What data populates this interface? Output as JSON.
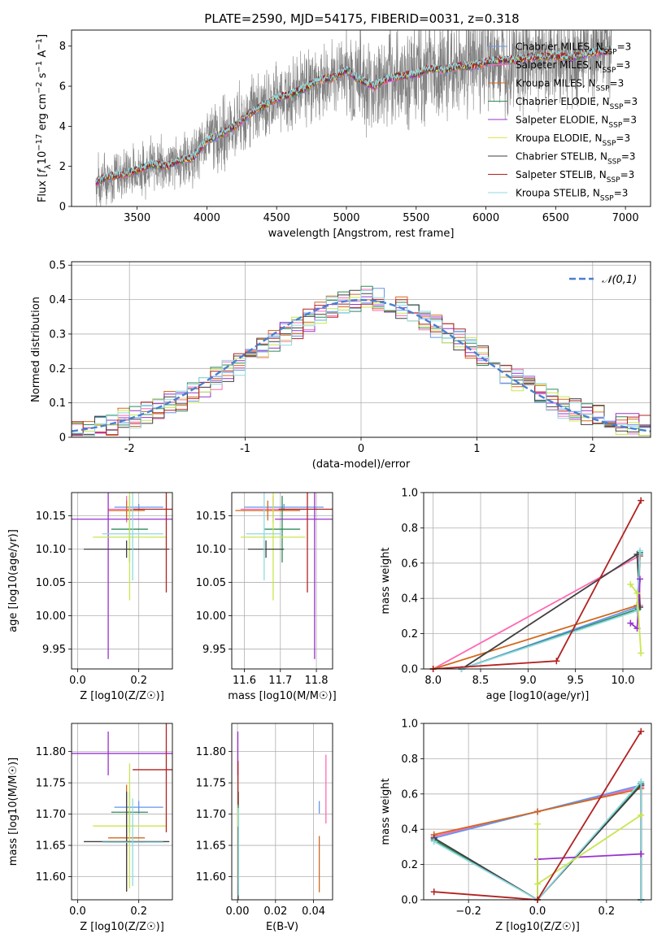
{
  "figure": {
    "title": "PLATE=2590, MJD=54175, FIBERID=0031, z=0.318"
  },
  "chart_data": [
    {
      "id": "spectrum",
      "type": "line",
      "xlabel": "wavelength [Angstrom, rest frame]",
      "ylabel": "Flux [f_λ 10^-17 erg cm^-2 s^-1 A^-1]",
      "xlim": [
        3030,
        7180
      ],
      "ylim": [
        0,
        8.8
      ],
      "xticks": [
        3500,
        4000,
        4500,
        5000,
        5500,
        6000,
        6500,
        7000
      ],
      "yticks": [
        0,
        2,
        4,
        6,
        8
      ],
      "grid": false,
      "legend_position": "top-right",
      "data_color": "#808080",
      "data_range": [
        3205,
        6900
      ],
      "envelope": {
        "x": [
          3205,
          3300,
          3400,
          3500,
          3600,
          3700,
          3800,
          3900,
          4000,
          4100,
          4200,
          4300,
          4400,
          4500,
          4600,
          4700,
          4800,
          4900,
          5000,
          5100,
          5200,
          5300,
          5400,
          5500,
          5600,
          5700,
          5800,
          5900,
          6000,
          6100,
          6200,
          6300,
          6400,
          6500,
          6600,
          6700,
          6800,
          6900
        ],
        "y": [
          1.2,
          1.5,
          1.6,
          1.8,
          2.1,
          2.0,
          2.3,
          2.4,
          3.3,
          3.6,
          4.0,
          4.6,
          5.0,
          5.4,
          5.6,
          5.9,
          6.3,
          6.4,
          6.8,
          6.3,
          6.0,
          6.4,
          6.5,
          6.6,
          6.9,
          6.8,
          7.0,
          7.0,
          7.2,
          7.3,
          7.3,
          7.4,
          7.5,
          7.5,
          7.4,
          7.6,
          7.7,
          7.8
        ]
      },
      "series": [
        {
          "name": "Chabrier MILES, N_SSP=3",
          "color": "#6495ed"
        },
        {
          "name": "Salpeter MILES, N_SSP=3",
          "color": "#ff69b4"
        },
        {
          "name": "Kroupa MILES, N_SSP=3",
          "color": "#d2691e"
        },
        {
          "name": "Chabrier ELODIE, N_SSP=3",
          "color": "#2e8b57"
        },
        {
          "name": "Salpeter ELODIE, N_SSP=3",
          "color": "#9932cc"
        },
        {
          "name": "Kroupa ELODIE, N_SSP=3",
          "color": "#e5e550"
        },
        {
          "name": "Chabrier STELIB, N_SSP=3",
          "color": "#404040"
        },
        {
          "name": "Salpeter STELIB, N_SSP=3",
          "color": "#b22222"
        },
        {
          "name": "Kroupa STELIB, N_SSP=3",
          "color": "#8fd9e0"
        }
      ]
    },
    {
      "id": "residuals",
      "type": "line",
      "xlabel": "(data-model)/error",
      "ylabel": "Normed distribution",
      "xlim": [
        -2.5,
        2.5
      ],
      "ylim": [
        0,
        0.51
      ],
      "xticks": [
        -2,
        -1,
        0,
        1,
        2
      ],
      "yticks": [
        0.0,
        0.1,
        0.2,
        0.3,
        0.4,
        0.5
      ],
      "grid": true,
      "legend_position": "top-right",
      "gaussian": {
        "name": "𝒩(0,1)",
        "color": "#4a7fd0"
      },
      "bin_centers": [
        -2.45,
        -2.35,
        -2.25,
        -2.15,
        -2.05,
        -1.95,
        -1.85,
        -1.75,
        -1.65,
        -1.55,
        -1.45,
        -1.35,
        -1.25,
        -1.15,
        -1.05,
        -0.95,
        -0.85,
        -0.75,
        -0.65,
        -0.55,
        -0.45,
        -0.35,
        -0.25,
        -0.15,
        -0.05,
        0.05,
        0.15,
        0.25,
        0.35,
        0.45,
        0.55,
        0.65,
        0.75,
        0.85,
        0.95,
        1.05,
        1.15,
        1.25,
        1.35,
        1.45,
        1.55,
        1.65,
        1.75,
        1.85,
        1.95,
        2.05,
        2.15,
        2.25,
        2.35,
        2.45
      ],
      "hist_colors": [
        "#6495ed",
        "#ff69b4",
        "#d2691e",
        "#2e8b57",
        "#9932cc",
        "#c8e650",
        "#404040",
        "#b22222",
        "#8fd9e0"
      ],
      "hist_base": [
        0.02,
        0.02,
        0.03,
        0.04,
        0.05,
        0.06,
        0.07,
        0.08,
        0.1,
        0.11,
        0.13,
        0.15,
        0.17,
        0.19,
        0.21,
        0.23,
        0.26,
        0.28,
        0.3,
        0.32,
        0.34,
        0.36,
        0.38,
        0.39,
        0.4,
        0.41,
        0.4,
        0.39,
        0.38,
        0.36,
        0.34,
        0.32,
        0.3,
        0.28,
        0.26,
        0.24,
        0.21,
        0.19,
        0.17,
        0.15,
        0.13,
        0.11,
        0.09,
        0.08,
        0.07,
        0.06,
        0.05,
        0.04,
        0.04,
        0.03
      ]
    },
    {
      "id": "age-vs-Z",
      "type": "scatter",
      "xlabel": "Z [log10(Z/Z☉)]",
      "ylabel": "age [log10(age/yr)]",
      "xlim": [
        -0.02,
        0.31
      ],
      "ylim": [
        9.92,
        10.185
      ],
      "xticks": [
        0.0,
        0.2
      ],
      "xticklabels": [
        "0.0",
        "0.2"
      ],
      "yticks": [
        9.95,
        10.0,
        10.05,
        10.1,
        10.15
      ],
      "yticklabels": [
        "9.95",
        "10.00",
        "10.05",
        "10.10",
        "10.15"
      ],
      "grid": true,
      "points": [
        {
          "x": 0.2,
          "xerr": 0.08,
          "y": 10.163,
          "yerr": 0.005,
          "color": "#6495ed"
        },
        {
          "x": 0.16,
          "xerr": 0.06,
          "y": 10.16,
          "yerr": 0.02,
          "color": "#ff69b4"
        },
        {
          "x": 0.16,
          "xerr": 0.06,
          "y": 10.158,
          "yerr": 0.015,
          "color": "#d2691e"
        },
        {
          "x": 0.17,
          "xerr": 0.06,
          "y": 10.13,
          "yerr": 0.05,
          "color": "#2e8b57"
        },
        {
          "x": 0.1,
          "xerr": 0.24,
          "y": 10.145,
          "yerr": 0.21,
          "color": "#9932cc"
        },
        {
          "x": 0.17,
          "xerr": 0.12,
          "y": 10.118,
          "yerr": 0.095,
          "color": "#c8e650"
        },
        {
          "x": 0.16,
          "xerr": 0.14,
          "y": 10.1,
          "yerr": 0.013,
          "color": "#404040"
        },
        {
          "x": 0.29,
          "xerr": 0.11,
          "y": 10.16,
          "yerr": 0.125,
          "color": "#b22222"
        },
        {
          "x": 0.18,
          "xerr": 0.1,
          "y": 10.123,
          "yerr": 0.07,
          "color": "#8fd9e0"
        }
      ]
    },
    {
      "id": "age-vs-mass",
      "type": "scatter",
      "xlabel": "mass [log10(M/M☉)]",
      "ylabel": "",
      "xlim": [
        11.565,
        11.845
      ],
      "ylim": [
        9.92,
        10.185
      ],
      "xticks": [
        11.6,
        11.7,
        11.8
      ],
      "xticklabels": [
        "11.6",
        "11.7",
        "11.8"
      ],
      "yticks": [
        9.95,
        10.0,
        10.05,
        10.1,
        10.15
      ],
      "yticklabels": [
        "9.95",
        "10.00",
        "10.05",
        "10.10",
        "10.15"
      ],
      "grid": true,
      "points": [
        {
          "x": 11.71,
          "xerr": 0.11,
          "y": 10.163,
          "yerr": 0.005,
          "color": "#6495ed"
        },
        {
          "x": 11.68,
          "xerr": 0.09,
          "y": 10.16,
          "yerr": 0.02,
          "color": "#ff69b4"
        },
        {
          "x": 11.665,
          "xerr": 0.09,
          "y": 10.158,
          "yerr": 0.015,
          "color": "#d2691e"
        },
        {
          "x": 11.705,
          "xerr": 0.05,
          "y": 10.13,
          "yerr": 0.05,
          "color": "#2e8b57"
        },
        {
          "x": 11.795,
          "xerr": 0.11,
          "y": 10.145,
          "yerr": 0.21,
          "color": "#9932cc"
        },
        {
          "x": 11.68,
          "xerr": 0.09,
          "y": 10.118,
          "yerr": 0.095,
          "color": "#c8e650"
        },
        {
          "x": 11.66,
          "xerr": 0.05,
          "y": 10.1,
          "yerr": 0.013,
          "color": "#404040"
        },
        {
          "x": 11.775,
          "xerr": 0.08,
          "y": 10.16,
          "yerr": 0.125,
          "color": "#b22222"
        },
        {
          "x": 11.655,
          "xerr": 0.05,
          "y": 10.123,
          "yerr": 0.07,
          "color": "#8fd9e0"
        }
      ]
    },
    {
      "id": "weight-vs-age",
      "type": "line",
      "xlabel": "age [log10(age/yr)]",
      "ylabel": "mass weight",
      "xlim": [
        7.9,
        10.3
      ],
      "ylim": [
        0,
        1.0
      ],
      "xticks": [
        8.0,
        8.5,
        9.0,
        9.5,
        10.0
      ],
      "xticklabels": [
        "8.0",
        "8.5",
        "9.0",
        "9.5",
        "10.0"
      ],
      "yticks": [
        0,
        0.2,
        0.4,
        0.6,
        0.8,
        1.0
      ],
      "yticklabels": [
        "0.0",
        "0.2",
        "0.4",
        "0.6",
        "0.8",
        "1.0"
      ],
      "grid": true,
      "series": [
        {
          "color": "#ff69b4",
          "x": [
            8.0,
            10.17,
            10.18
          ],
          "y": [
            0.0,
            0.64,
            0.36
          ]
        },
        {
          "color": "#6495ed",
          "x": [
            8.3,
            10.15,
            10.18
          ],
          "y": [
            0.0,
            0.35,
            0.65
          ]
        },
        {
          "color": "#d2691e",
          "x": [
            8.0,
            10.15,
            10.18
          ],
          "y": [
            0.0,
            0.36,
            0.64
          ]
        },
        {
          "color": "#2e8b57",
          "x": [
            8.3,
            10.16,
            10.18
          ],
          "y": [
            0.0,
            0.34,
            0.66
          ]
        },
        {
          "color": "#404040",
          "x": [
            8.3,
            10.15,
            10.18
          ],
          "y": [
            0.0,
            0.65,
            0.35
          ]
        },
        {
          "color": "#8fd9e0",
          "x": [
            8.3,
            10.15,
            10.18
          ],
          "y": [
            0.0,
            0.33,
            0.67
          ]
        },
        {
          "color": "#9932cc",
          "x": [
            10.08,
            10.15,
            10.18
          ],
          "y": [
            0.26,
            0.23,
            0.51
          ]
        },
        {
          "color": "#c8e650",
          "x": [
            10.08,
            10.15,
            10.19
          ],
          "y": [
            0.48,
            0.43,
            0.09
          ]
        },
        {
          "color": "#b22222",
          "x": [
            8.0,
            9.3,
            10.19
          ],
          "y": [
            0.0,
            0.045,
            0.955
          ]
        }
      ]
    },
    {
      "id": "mass-vs-Z",
      "type": "scatter",
      "xlabel": "Z [log10(Z/Z☉)]",
      "ylabel": "mass [log10(M/M☉)]",
      "xlim": [
        -0.02,
        0.31
      ],
      "ylim": [
        11.563,
        11.845
      ],
      "xticks": [
        0.0,
        0.2
      ],
      "xticklabels": [
        "0.0",
        "0.2"
      ],
      "yticks": [
        11.6,
        11.65,
        11.7,
        11.75,
        11.8
      ],
      "yticklabels": [
        "11.60",
        "11.65",
        "11.70",
        "11.75",
        "11.80"
      ],
      "grid": true,
      "points": [
        {
          "x": 0.2,
          "xerr": 0.08,
          "y": 11.711,
          "yerr": 0.01,
          "color": "#6495ed"
        },
        {
          "x": 0.16,
          "xerr": 0.06,
          "y": 11.655,
          "yerr": 0.02,
          "color": "#ff69b4"
        },
        {
          "x": 0.16,
          "xerr": 0.06,
          "y": 11.662,
          "yerr": 0.085,
          "color": "#d2691e"
        },
        {
          "x": 0.17,
          "xerr": 0.06,
          "y": 11.703,
          "yerr": 0.033,
          "color": "#2e8b57"
        },
        {
          "x": 0.1,
          "xerr": 0.24,
          "y": 11.797,
          "yerr": 0.035,
          "color": "#9932cc"
        },
        {
          "x": 0.17,
          "xerr": 0.12,
          "y": 11.681,
          "yerr": 0.1,
          "color": "#c8e650"
        },
        {
          "x": 0.16,
          "xerr": 0.14,
          "y": 11.656,
          "yerr": 0.08,
          "color": "#404040"
        },
        {
          "x": 0.29,
          "xerr": 0.11,
          "y": 11.771,
          "yerr": 0.1,
          "color": "#b22222"
        },
        {
          "x": 0.18,
          "xerr": 0.1,
          "y": 11.655,
          "yerr": 0.07,
          "color": "#8fd9e0"
        }
      ]
    },
    {
      "id": "mass-vs-ebv",
      "type": "scatter",
      "xlabel": "E(B-V)",
      "ylabel": "",
      "xlim": [
        -0.003,
        0.05
      ],
      "ylim": [
        11.563,
        11.845
      ],
      "xticks": [
        0.0,
        0.02,
        0.04
      ],
      "xticklabels": [
        "0.00",
        "0.02",
        "0.04"
      ],
      "yticks": [
        11.6,
        11.65,
        11.7,
        11.75,
        11.8
      ],
      "yticklabels": [
        "11.60",
        "11.65",
        "11.70",
        "11.75",
        "11.80"
      ],
      "grid": true,
      "points": [
        {
          "x": 0.043,
          "xerr": 0.0,
          "y": 11.711,
          "yerr": 0.01,
          "color": "#6495ed"
        },
        {
          "x": 0.0465,
          "xerr": 0.0,
          "y": 11.74,
          "yerr": 0.055,
          "color": "#ff69b4"
        },
        {
          "x": 0.043,
          "xerr": 0.0,
          "y": 11.62,
          "yerr": 0.045,
          "color": "#d2691e"
        },
        {
          "x": 0.0005,
          "xerr": 0.0,
          "y": 11.703,
          "yerr": 0.033,
          "color": "#2e8b57"
        },
        {
          "x": 0.0002,
          "xerr": 0.0,
          "y": 11.797,
          "yerr": 0.035,
          "color": "#9932cc"
        },
        {
          "x": 0.0003,
          "xerr": 0.0,
          "y": 11.65,
          "yerr": 0.06,
          "color": "#c8e650"
        },
        {
          "x": 0.0004,
          "xerr": 0.0,
          "y": 11.62,
          "yerr": 0.06,
          "color": "#404040"
        },
        {
          "x": 0.0003,
          "xerr": 0.0,
          "y": 11.75,
          "yerr": 0.035,
          "color": "#b22222"
        },
        {
          "x": 0.0006,
          "xerr": 0.0,
          "y": 11.64,
          "yerr": 0.07,
          "color": "#8fd9e0"
        }
      ]
    },
    {
      "id": "weight-vs-Z",
      "type": "line",
      "xlabel": "Z [log10(Z/Z☉)]",
      "ylabel": "mass weight",
      "xlim": [
        -0.33,
        0.33
      ],
      "ylim": [
        0,
        1.0
      ],
      "xticks": [
        -0.2,
        0.0,
        0.2
      ],
      "xticklabels": [
        "−0.2",
        "0.0",
        "0.2"
      ],
      "yticks": [
        0,
        0.2,
        0.4,
        0.6,
        0.8,
        1.0
      ],
      "yticklabels": [
        "0.0",
        "0.2",
        "0.4",
        "0.6",
        "0.8",
        "1.0"
      ],
      "grid": true,
      "series": [
        {
          "color": "#ff69b4",
          "x": [
            -0.3,
            0.0,
            0.3,
            0.3
          ],
          "y": [
            0.36,
            0.5,
            0.64,
            0.0
          ]
        },
        {
          "color": "#6495ed",
          "x": [
            -0.3,
            0.0,
            0.3,
            0.3
          ],
          "y": [
            0.35,
            0.5,
            0.65,
            0.0
          ]
        },
        {
          "color": "#d2691e",
          "x": [
            -0.3,
            0.0,
            0.3,
            0.3
          ],
          "y": [
            0.37,
            0.5,
            0.63,
            0.0
          ]
        },
        {
          "color": "#2e8b57",
          "x": [
            -0.3,
            0.0,
            0.3,
            0.3
          ],
          "y": [
            0.34,
            0.0,
            0.66,
            0.0
          ]
        },
        {
          "color": "#404040",
          "x": [
            -0.3,
            0.0,
            0.3,
            0.3
          ],
          "y": [
            0.35,
            0.0,
            0.65,
            0.0
          ]
        },
        {
          "color": "#8fd9e0",
          "x": [
            -0.3,
            0.0,
            0.3,
            0.3
          ],
          "y": [
            0.33,
            0.0,
            0.67,
            0.0
          ]
        },
        {
          "color": "#9932cc",
          "x": [
            0.0,
            0.0,
            0.3
          ],
          "y": [
            0.0,
            0.23,
            0.26
          ]
        },
        {
          "color": "#c8e650",
          "x": [
            0.0,
            0.0,
            0.0,
            0.3
          ],
          "y": [
            0.0,
            0.43,
            0.09,
            0.48
          ]
        },
        {
          "color": "#b22222",
          "x": [
            -0.3,
            0.0,
            0.3
          ],
          "y": [
            0.045,
            0.0,
            0.955
          ]
        }
      ]
    }
  ]
}
